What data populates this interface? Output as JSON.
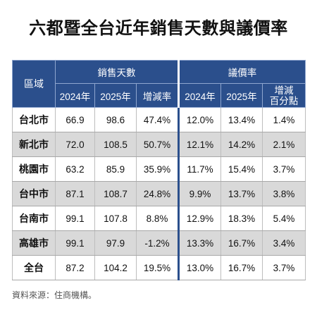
{
  "title": "六都暨全台近年銷售天數與議價率",
  "source": "資料來源：住商機構。",
  "header": {
    "region": "區域",
    "group_days": "銷售天數",
    "group_rate": "議價率",
    "days_cols": [
      "2024年",
      "2025年",
      "增減率"
    ],
    "rate_cols": [
      "2024年",
      "2025年",
      "增減\n百分點"
    ]
  },
  "colors": {
    "header_bg": "#2b4f8c",
    "row_alt": "#d9d9d9"
  },
  "chart_data": {
    "type": "table",
    "title": "六都暨全台近年銷售天數與議價率",
    "columns": [
      "區域",
      "銷售天數 2024年",
      "銷售天數 2025年",
      "銷售天數 增減率",
      "議價率 2024年",
      "議價率 2025年",
      "議價率 增減百分點"
    ],
    "rows": [
      {
        "region": "台北市",
        "days_2024": "66.9",
        "days_2025": "98.6",
        "days_change": "47.4%",
        "rate_2024": "12.0%",
        "rate_2025": "13.4%",
        "rate_change": "1.4%"
      },
      {
        "region": "新北市",
        "days_2024": "72.0",
        "days_2025": "108.5",
        "days_change": "50.7%",
        "rate_2024": "12.1%",
        "rate_2025": "14.2%",
        "rate_change": "2.1%"
      },
      {
        "region": "桃園市",
        "days_2024": "63.2",
        "days_2025": "85.9",
        "days_change": "35.9%",
        "rate_2024": "11.7%",
        "rate_2025": "15.4%",
        "rate_change": "3.7%"
      },
      {
        "region": "台中市",
        "days_2024": "87.1",
        "days_2025": "108.7",
        "days_change": "24.8%",
        "rate_2024": "9.9%",
        "rate_2025": "13.7%",
        "rate_change": "3.8%"
      },
      {
        "region": "台南市",
        "days_2024": "99.1",
        "days_2025": "107.8",
        "days_change": "8.8%",
        "rate_2024": "12.9%",
        "rate_2025": "18.3%",
        "rate_change": "5.4%"
      },
      {
        "region": "高雄市",
        "days_2024": "99.1",
        "days_2025": "97.9",
        "days_change": "-1.2%",
        "rate_2024": "13.3%",
        "rate_2025": "16.7%",
        "rate_change": "3.4%"
      },
      {
        "region": "全台",
        "days_2024": "87.2",
        "days_2025": "104.2",
        "days_change": "19.5%",
        "rate_2024": "13.0%",
        "rate_2025": "16.7%",
        "rate_change": "3.7%"
      }
    ]
  }
}
